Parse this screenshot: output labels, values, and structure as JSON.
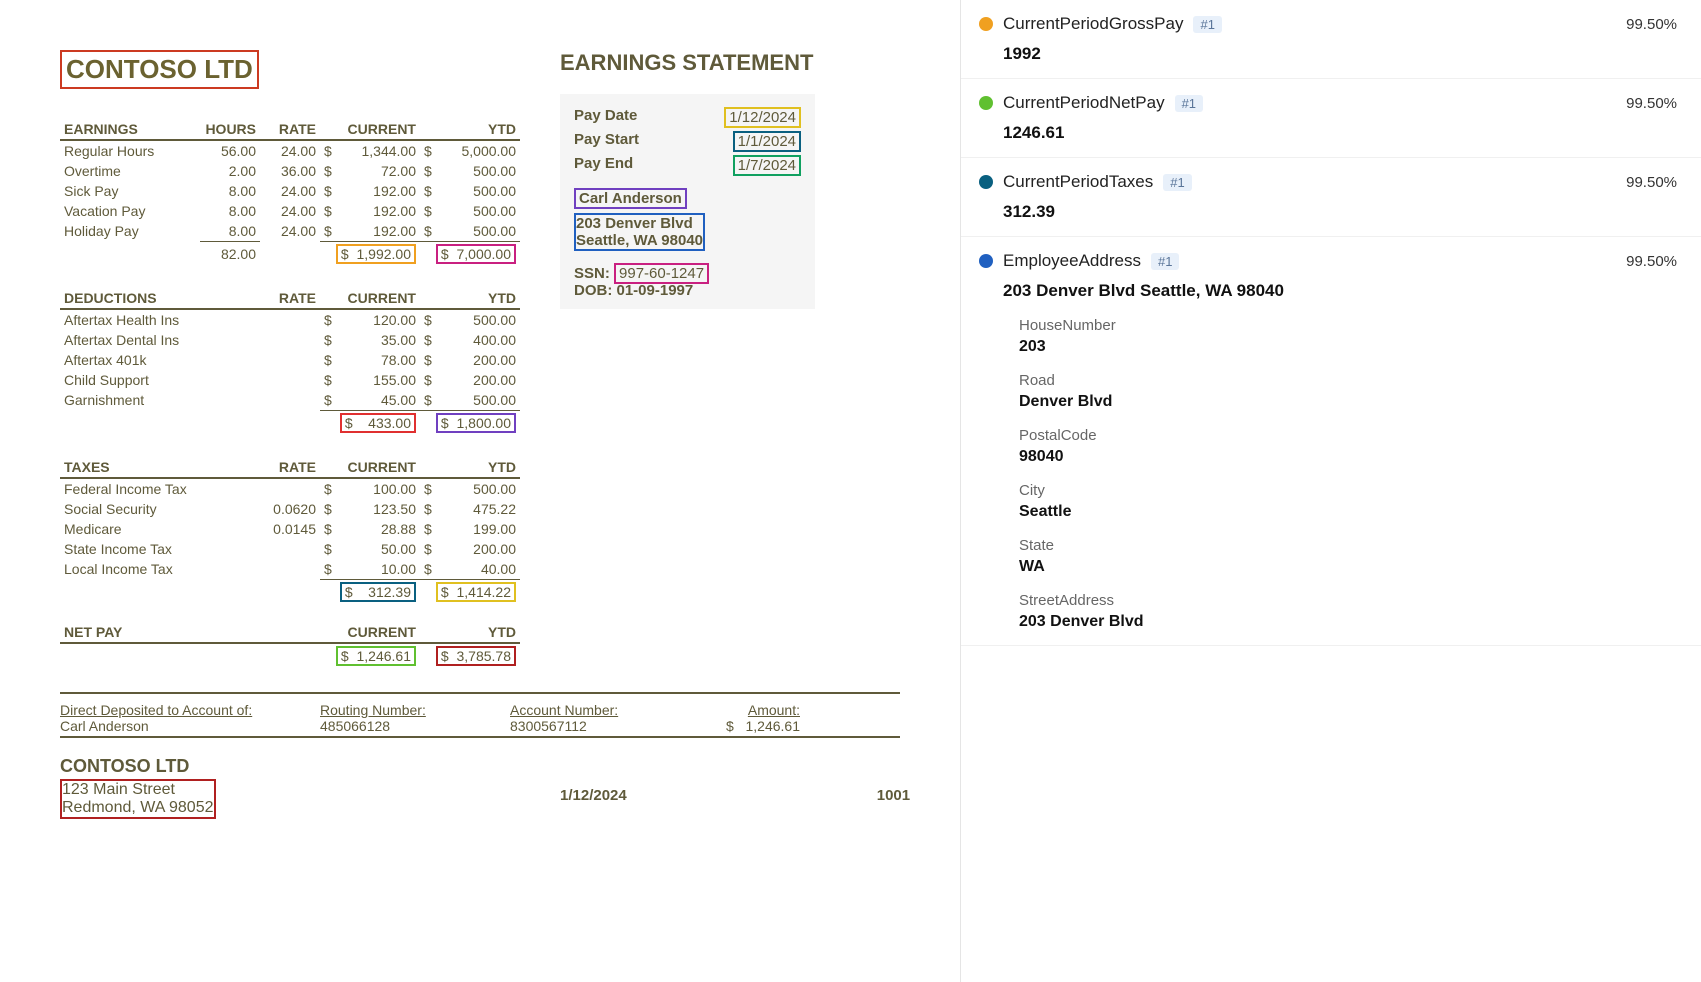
{
  "doc": {
    "company": "CONTOSO LTD",
    "statement_title": "EARNINGS STATEMENT",
    "earnings": {
      "header": "EARNINGS",
      "cols": [
        "HOURS",
        "RATE",
        "CURRENT",
        "YTD"
      ],
      "rows": [
        {
          "label": "Regular Hours",
          "hours": "56.00",
          "rate": "24.00",
          "cur": "1,344.00",
          "ytd": "5,000.00"
        },
        {
          "label": "Overtime",
          "hours": "2.00",
          "rate": "36.00",
          "cur": "72.00",
          "ytd": "500.00"
        },
        {
          "label": "Sick Pay",
          "hours": "8.00",
          "rate": "24.00",
          "cur": "192.00",
          "ytd": "500.00"
        },
        {
          "label": "Vacation Pay",
          "hours": "8.00",
          "rate": "24.00",
          "cur": "192.00",
          "ytd": "500.00"
        },
        {
          "label": "Holiday Pay",
          "hours": "8.00",
          "rate": "24.00",
          "cur": "192.00",
          "ytd": "500.00"
        }
      ],
      "total_hours": "82.00",
      "total_cur": "1,992.00",
      "total_ytd": "7,000.00"
    },
    "deductions": {
      "header": "DEDUCTIONS",
      "rows": [
        {
          "label": "Aftertax Health Ins",
          "cur": "120.00",
          "ytd": "500.00"
        },
        {
          "label": "Aftertax Dental Ins",
          "cur": "35.00",
          "ytd": "400.00"
        },
        {
          "label": "Aftertax 401k",
          "cur": "78.00",
          "ytd": "200.00"
        },
        {
          "label": "Child Support",
          "cur": "155.00",
          "ytd": "200.00"
        },
        {
          "label": "Garnishment",
          "cur": "45.00",
          "ytd": "500.00"
        }
      ],
      "total_cur": "433.00",
      "total_ytd": "1,800.00"
    },
    "taxes": {
      "header": "TAXES",
      "rows": [
        {
          "label": "Federal Income Tax",
          "rate": "",
          "cur": "100.00",
          "ytd": "500.00"
        },
        {
          "label": "Social Security",
          "rate": "0.0620",
          "cur": "123.50",
          "ytd": "475.22"
        },
        {
          "label": "Medicare",
          "rate": "0.0145",
          "cur": "28.88",
          "ytd": "199.00"
        },
        {
          "label": "State Income Tax",
          "rate": "",
          "cur": "50.00",
          "ytd": "200.00"
        },
        {
          "label": "Local Income Tax",
          "rate": "",
          "cur": "10.00",
          "ytd": "40.00"
        }
      ],
      "total_cur": "312.39",
      "total_ytd": "1,414.22"
    },
    "netpay": {
      "header": "NET PAY",
      "cur": "1,246.61",
      "ytd": "3,785.78"
    },
    "paybox": {
      "pay_date_lbl": "Pay Date",
      "pay_date": "1/12/2024",
      "pay_start_lbl": "Pay Start",
      "pay_start": "1/1/2024",
      "pay_end_lbl": "Pay End",
      "pay_end": "1/7/2024",
      "name": "Carl Anderson",
      "addr1": "203 Denver Blvd",
      "addr2": "Seattle, WA 98040",
      "ssn_lbl": "SSN:",
      "ssn": "997-60-1247",
      "dob_lbl": "DOB: 01-09-1997"
    },
    "footer": {
      "dep_lbl": "Direct Deposited to Account of:",
      "dep_name": "Carl Anderson",
      "rout_lbl": "Routing Number:",
      "rout": "485066128",
      "acct_lbl": "Account Number:",
      "acct": "8300567112",
      "amt_lbl": "Amount:",
      "amt": "1,246.61",
      "company": "CONTOSO LTD",
      "c_addr1": "123 Main Street",
      "c_addr2": "Redmond, WA 98052",
      "date": "1/12/2024",
      "seq": "1001"
    }
  },
  "results": {
    "badge": "#1",
    "conf": "99.50%",
    "fields": [
      {
        "dotColor": "#f0a020",
        "name": "CurrentPeriodGrossPay",
        "value": "1992"
      },
      {
        "dotColor": "#60c030",
        "name": "CurrentPeriodNetPay",
        "value": "1246.61"
      },
      {
        "dotColor": "#0a6080",
        "name": "CurrentPeriodTaxes",
        "value": "312.39"
      },
      {
        "dotColor": "#2060c0",
        "name": "EmployeeAddress",
        "value": "203 Denver Blvd Seattle, WA 98040",
        "sub": [
          {
            "lbl": "HouseNumber",
            "val": "203"
          },
          {
            "lbl": "Road",
            "val": "Denver Blvd"
          },
          {
            "lbl": "PostalCode",
            "val": "98040"
          },
          {
            "lbl": "City",
            "val": "Seattle"
          },
          {
            "lbl": "State",
            "val": "WA"
          },
          {
            "lbl": "StreetAddress",
            "val": "203 Denver Blvd"
          }
        ]
      }
    ]
  },
  "labels": {
    "dollar": "$",
    "rate": "RATE",
    "current": "CURRENT",
    "ytd": "YTD"
  }
}
